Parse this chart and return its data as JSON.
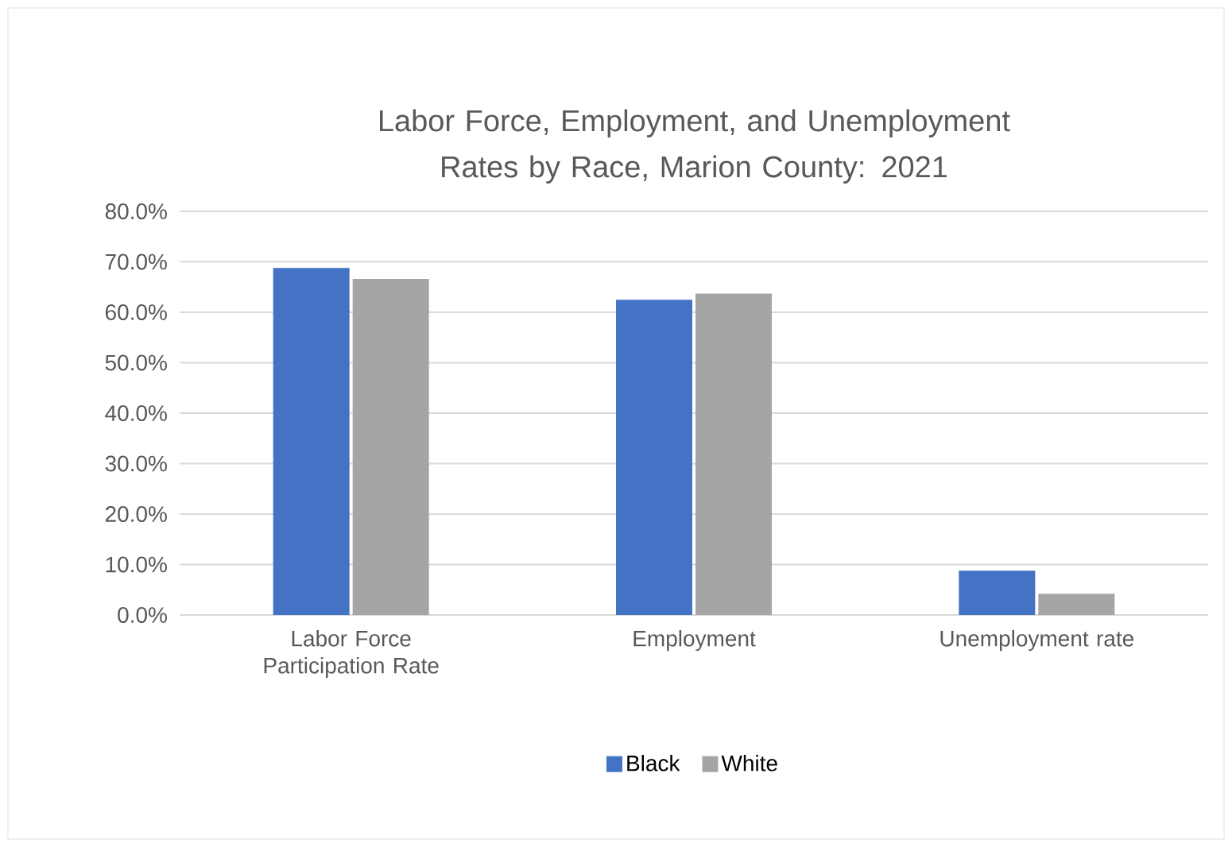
{
  "chart_data": {
    "type": "bar",
    "title": "Labor Force, Employment, and Unemployment Rates by Race, Marion County: 2021",
    "categories": [
      "Labor Force Participation Rate",
      "Employment",
      "Unemployment rate"
    ],
    "series": [
      {
        "name": "Black",
        "color": "#4472c4",
        "values": [
          68.8,
          62.5,
          8.8
        ]
      },
      {
        "name": "White",
        "color": "#a5a5a5",
        "values": [
          66.6,
          63.7,
          4.2
        ]
      }
    ],
    "ylim": [
      0,
      80
    ],
    "yticks": [
      {
        "value": 0,
        "label": "0.0%"
      },
      {
        "value": 10,
        "label": "10.0%"
      },
      {
        "value": 20,
        "label": "20.0%"
      },
      {
        "value": 30,
        "label": "30.0%"
      },
      {
        "value": 40,
        "label": "40.0%"
      },
      {
        "value": 50,
        "label": "50.0%"
      },
      {
        "value": 60,
        "label": "60.0%"
      },
      {
        "value": 70,
        "label": "70.0%"
      },
      {
        "value": 80,
        "label": "80.0%"
      }
    ],
    "grid": "y",
    "legend": "bottom"
  }
}
